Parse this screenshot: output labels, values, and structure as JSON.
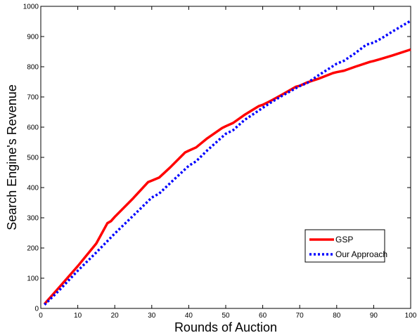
{
  "chart_data": {
    "type": "line",
    "title": "",
    "xlabel": "Rounds of Auction",
    "ylabel": "Search Engine's Revenue",
    "xlim": [
      0,
      100
    ],
    "ylim": [
      0,
      1000
    ],
    "xticks": [
      "0",
      "10",
      "20",
      "30",
      "40",
      "50",
      "60",
      "70",
      "80",
      "90",
      "100"
    ],
    "yticks": [
      "0",
      "100",
      "200",
      "300",
      "400",
      "500",
      "600",
      "700",
      "800",
      "900",
      "1000"
    ],
    "grid": false,
    "legend_position": "lower-right",
    "series": [
      {
        "name": "GSP",
        "color": "#ff0000",
        "style": "solid",
        "x": [
          1,
          5,
          10,
          15,
          18,
          19,
          20,
          25,
          29,
          30,
          32,
          35,
          39,
          40,
          42,
          45,
          49,
          50,
          52,
          55,
          59,
          60,
          62,
          65,
          69,
          70,
          72,
          75,
          79,
          80,
          82,
          85,
          89,
          90,
          92,
          95,
          100
        ],
        "y": [
          15,
          70,
          140,
          215,
          282,
          289,
          303,
          365,
          418,
          423,
          433,
          467,
          516,
          522,
          533,
          563,
          597,
          603,
          614,
          640,
          670,
          674,
          686,
          706,
          734,
          737,
          748,
          760,
          779,
          782,
          787,
          800,
          816,
          819,
          826,
          837,
          857
        ]
      },
      {
        "name": "Our Approach",
        "color": "#0000ff",
        "style": "dotted",
        "x": [
          1,
          5,
          10,
          15,
          20,
          25,
          30,
          32,
          35,
          40,
          42,
          45,
          50,
          52,
          55,
          60,
          62,
          65,
          70,
          72,
          75,
          80,
          82,
          85,
          88,
          90,
          92,
          95,
          100
        ],
        "y": [
          12,
          60,
          125,
          185,
          248,
          307,
          367,
          380,
          415,
          472,
          487,
          523,
          578,
          590,
          623,
          664,
          680,
          702,
          736,
          746,
          771,
          810,
          820,
          845,
          873,
          880,
          893,
          916,
          952
        ]
      }
    ]
  }
}
